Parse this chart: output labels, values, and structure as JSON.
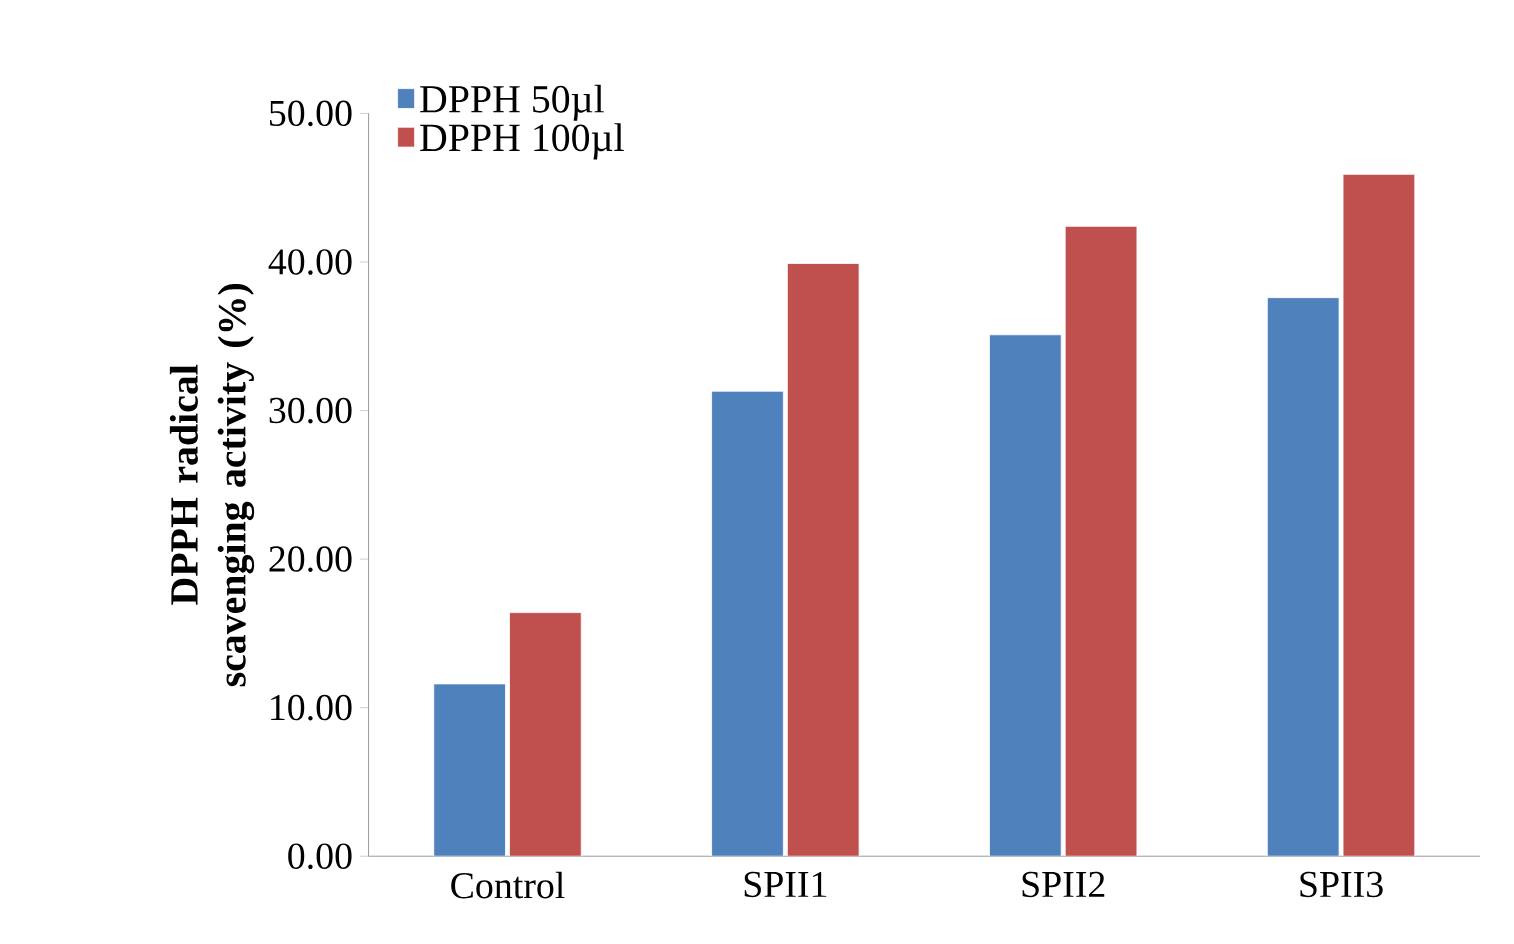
{
  "chart_data": {
    "type": "bar",
    "ylabel": "DPPH radical scavenging activity (%)",
    "categories": [
      "Control",
      "SPII1",
      "SPII2",
      "SPII3"
    ],
    "series": [
      {
        "name": "DPPH 50µl",
        "color": "#4f81bd",
        "values": [
          11.6,
          31.3,
          35.1,
          37.6
        ]
      },
      {
        "name": "DPPH 100µl",
        "color": "#c0504d",
        "values": [
          16.4,
          39.9,
          42.4,
          45.9
        ]
      }
    ],
    "ylim": [
      0,
      50
    ],
    "yticks": [
      {
        "value": 0,
        "label": "0.00"
      },
      {
        "value": 10,
        "label": "10.00"
      },
      {
        "value": 20,
        "label": "20.00"
      },
      {
        "value": 30,
        "label": "30.00"
      },
      {
        "value": 40,
        "label": "40.00"
      },
      {
        "value": 50,
        "label": "50.00"
      }
    ],
    "legend": "top left",
    "grid": false
  }
}
